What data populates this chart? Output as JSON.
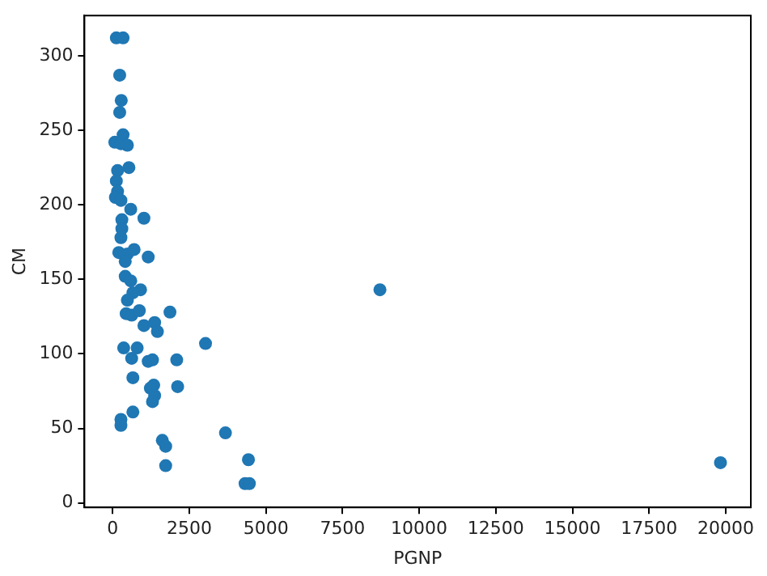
{
  "chart_data": {
    "type": "scatter",
    "xlabel": "PGNP",
    "ylabel": "CM",
    "x": [
      120,
      340,
      230,
      280,
      230,
      70,
      340,
      270,
      480,
      530,
      160,
      120,
      160,
      90,
      270,
      590,
      1020,
      300,
      300,
      270,
      200,
      480,
      700,
      1160,
      410,
      410,
      590,
      910,
      660,
      480,
      440,
      620,
      870,
      1870,
      1020,
      1370,
      1460,
      360,
      800,
      620,
      1160,
      1300,
      2090,
      3030,
      660,
      1340,
      1230,
      1370,
      1300,
      2120,
      270,
      270,
      660,
      1620,
      1730,
      1730,
      3680,
      4430,
      4320,
      4460,
      8720,
      19830
    ],
    "values": [
      312,
      312,
      287,
      270,
      262,
      242,
      247,
      241,
      240,
      225,
      223,
      216,
      209,
      205,
      203,
      197,
      191,
      190,
      184,
      178,
      168,
      167,
      170,
      165,
      162,
      152,
      149,
      143,
      141,
      136,
      127,
      126,
      129,
      128,
      119,
      121,
      115,
      104,
      104,
      97,
      95,
      96,
      96,
      107,
      84,
      79,
      77,
      72,
      68,
      78,
      56,
      52,
      61,
      42,
      38,
      25,
      47,
      29,
      13,
      13,
      143,
      27
    ],
    "color": "#1f77b4",
    "marker": "circle",
    "xlim": [
      -920,
      20820
    ],
    "ylim": [
      -3,
      327
    ],
    "xticks": [
      0,
      2500,
      5000,
      7500,
      10000,
      12500,
      15000,
      17500,
      20000
    ],
    "yticks": [
      0,
      50,
      100,
      150,
      200,
      250,
      300
    ],
    "grid": false,
    "legend": false
  }
}
